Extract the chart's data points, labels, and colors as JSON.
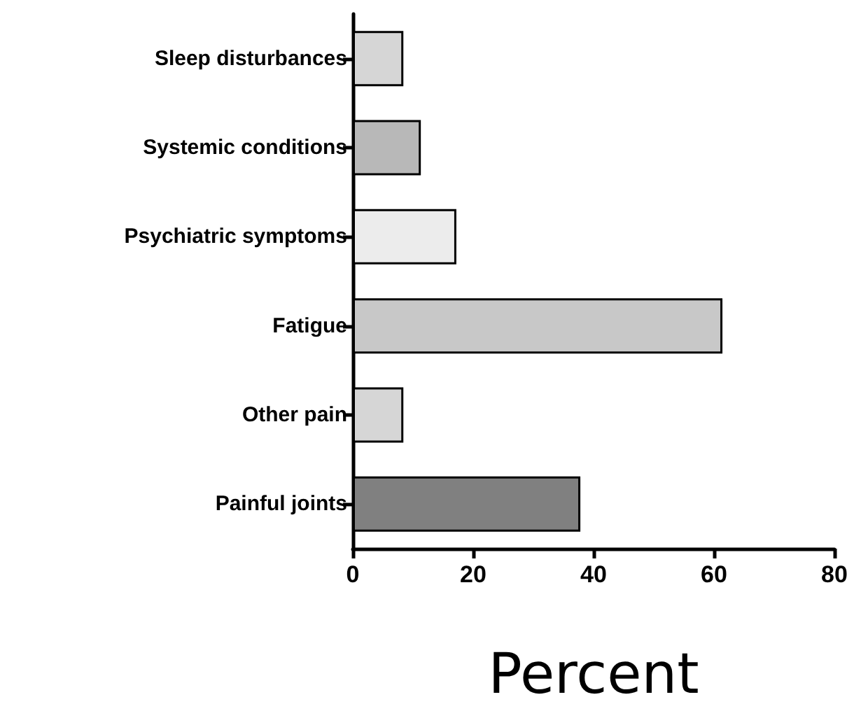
{
  "chart_data": {
    "type": "bar",
    "orientation": "horizontal",
    "xlabel": "Percent",
    "categories": [
      "Sleep disturbances",
      "Systemic conditions",
      "Psychiatric symptoms",
      "Fatigue",
      "Other pain",
      "Painful joints"
    ],
    "values": [
      8.4,
      11.3,
      17.2,
      61.4,
      8.4,
      37.8
    ],
    "colors": [
      "#d6d6d6",
      "#b8b8b8",
      "#ececec",
      "#c8c8c8",
      "#d6d6d6",
      "#808080"
    ],
    "xlim": [
      0,
      80
    ],
    "xticks": [
      0,
      20,
      40,
      60,
      80
    ],
    "grid": false
  }
}
